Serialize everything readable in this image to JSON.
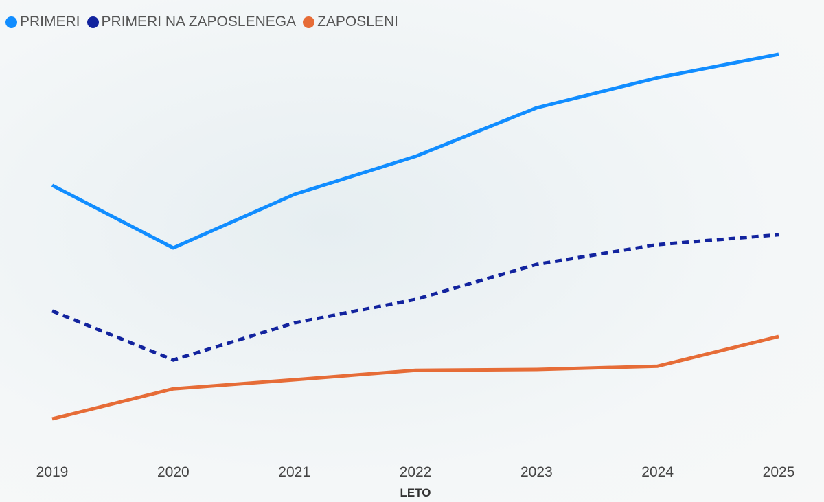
{
  "chart_data": {
    "type": "line",
    "title": "",
    "xlabel": "LETO",
    "ylabel": "",
    "categories": [
      "2019",
      "2020",
      "2021",
      "2022",
      "2023",
      "2024",
      "2025"
    ],
    "ylim": [
      0,
      100
    ],
    "y_axis_visible": false,
    "grid": false,
    "legend_position": "top-left",
    "series": [
      {
        "name": "PRIMERI",
        "color": "#118dff",
        "style": "solid",
        "values": [
          61.7,
          46.5,
          59.5,
          68.7,
          80.5,
          87.8,
          93.5
        ]
      },
      {
        "name": "PRIMERI NA ZAPOSLENEGA",
        "color": "#12239e",
        "style": "dashed",
        "values": [
          31.2,
          19.3,
          28.3,
          34.0,
          42.5,
          47.3,
          49.7
        ]
      },
      {
        "name": "ZAPOSLENI",
        "color": "#e66c37",
        "style": "solid",
        "values": [
          5.0,
          12.3,
          14.5,
          16.8,
          17.0,
          17.8,
          25.0
        ]
      }
    ]
  }
}
